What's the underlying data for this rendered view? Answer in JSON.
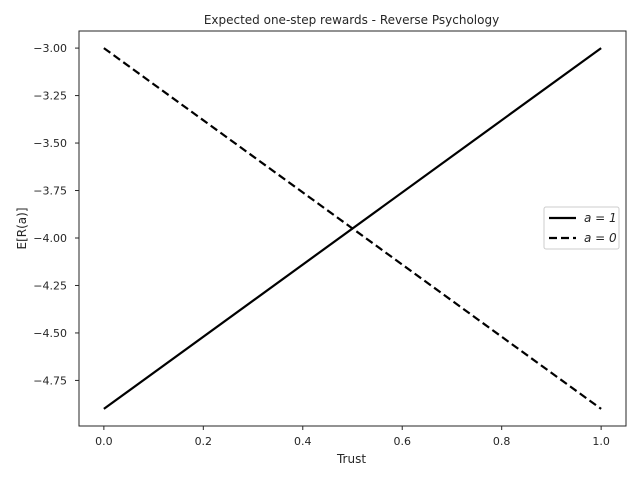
{
  "chart_data": {
    "type": "line",
    "title": "Expected one-step rewards - Reverse Psychology",
    "xlabel": "Trust",
    "ylabel": "E[R(a)]",
    "xlim": [
      -0.05,
      1.05
    ],
    "ylim": [
      -4.99,
      -2.91
    ],
    "xticks": [
      0.0,
      0.2,
      0.4,
      0.6,
      0.8,
      1.0
    ],
    "xtick_labels": [
      "0.0",
      "0.2",
      "0.4",
      "0.6",
      "0.8",
      "1.0"
    ],
    "yticks": [
      -3.0,
      -3.25,
      -3.5,
      -3.75,
      -4.0,
      -4.25,
      -4.5,
      -4.75
    ],
    "ytick_labels": [
      "−3.00",
      "−3.25",
      "−3.50",
      "−3.75",
      "−4.00",
      "−4.25",
      "−4.50",
      "−4.75"
    ],
    "grid": false,
    "legend_position": "center-right",
    "series": [
      {
        "name": "a = 1",
        "style": "solid",
        "color": "#000000",
        "x": [
          0.0,
          1.0
        ],
        "y": [
          -4.9,
          -3.0
        ]
      },
      {
        "name": "a = 0",
        "style": "dashed",
        "color": "#000000",
        "x": [
          0.0,
          1.0
        ],
        "y": [
          -3.0,
          -4.9
        ]
      }
    ]
  }
}
